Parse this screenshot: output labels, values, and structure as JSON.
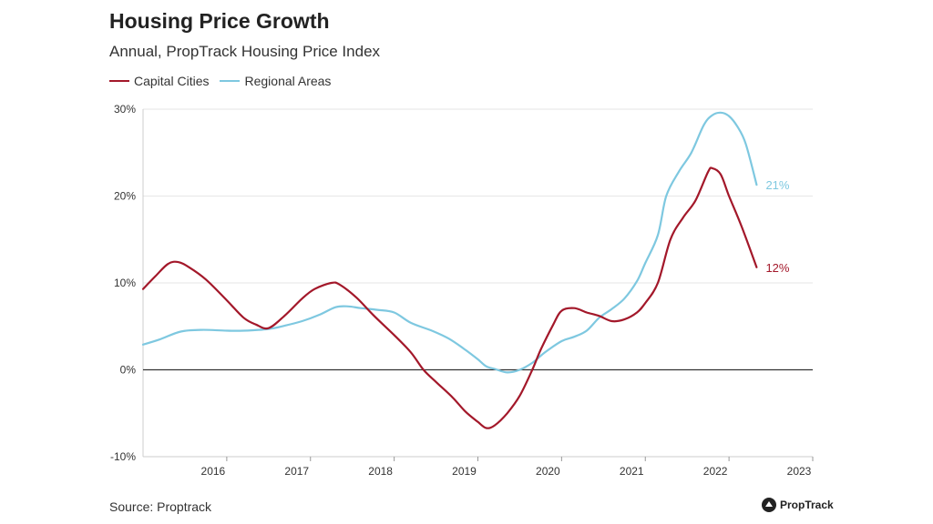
{
  "header": {
    "title": "Housing Price Growth",
    "subtitle": "Annual, PropTrack Housing Price Index"
  },
  "footer": {
    "source": "Source: Proptrack",
    "logo_text": "PropTrack"
  },
  "chart_data": {
    "type": "line",
    "title": "Housing Price Growth",
    "subtitle": "Annual, PropTrack Housing Price Index",
    "xlabel": "",
    "ylabel": "",
    "xlim": [
      2015.0,
      2023.0
    ],
    "ylim": [
      -10,
      30
    ],
    "y_ticks": [
      30,
      20,
      10,
      0,
      -10
    ],
    "y_tick_labels": [
      "30%",
      "20%",
      "10%",
      "0%",
      "-10%"
    ],
    "x_ticks": [
      2016,
      2017,
      2018,
      2019,
      2020,
      2021,
      2022,
      2023
    ],
    "x_tick_labels": [
      "2016",
      "2017",
      "2018",
      "2019",
      "2020",
      "2021",
      "2022",
      "2023"
    ],
    "grid": "horizontal",
    "legend_position": "top-left",
    "colors": {
      "capital": "#a3182a",
      "regional": "#7ec8e0",
      "zero_line": "#333333",
      "grid": "#e6e6e6"
    },
    "series": [
      {
        "name": "Capital Cities",
        "color": "#a3182a",
        "end_label": "12%",
        "points": [
          [
            2015.0,
            9.3
          ],
          [
            2015.15,
            10.8
          ],
          [
            2015.3,
            12.2
          ],
          [
            2015.42,
            12.4
          ],
          [
            2015.55,
            11.8
          ],
          [
            2015.75,
            10.4
          ],
          [
            2016.0,
            8.0
          ],
          [
            2016.2,
            6.0
          ],
          [
            2016.35,
            5.2
          ],
          [
            2016.5,
            4.8
          ],
          [
            2016.7,
            6.3
          ],
          [
            2016.9,
            8.2
          ],
          [
            2017.05,
            9.3
          ],
          [
            2017.25,
            10.0
          ],
          [
            2017.35,
            9.8
          ],
          [
            2017.55,
            8.3
          ],
          [
            2017.75,
            6.3
          ],
          [
            2018.0,
            4.0
          ],
          [
            2018.2,
            2.0
          ],
          [
            2018.35,
            0.0
          ],
          [
            2018.5,
            -1.4
          ],
          [
            2018.7,
            -3.2
          ],
          [
            2018.85,
            -4.8
          ],
          [
            2019.0,
            -6.0
          ],
          [
            2019.1,
            -6.7
          ],
          [
            2019.2,
            -6.4
          ],
          [
            2019.35,
            -5.0
          ],
          [
            2019.5,
            -3.0
          ],
          [
            2019.65,
            0.0
          ],
          [
            2019.75,
            2.3
          ],
          [
            2019.9,
            5.2
          ],
          [
            2020.0,
            6.8
          ],
          [
            2020.15,
            7.1
          ],
          [
            2020.3,
            6.6
          ],
          [
            2020.45,
            6.2
          ],
          [
            2020.6,
            5.6
          ],
          [
            2020.75,
            5.8
          ],
          [
            2020.9,
            6.6
          ],
          [
            2021.0,
            7.7
          ],
          [
            2021.15,
            10.0
          ],
          [
            2021.3,
            15.0
          ],
          [
            2021.45,
            17.5
          ],
          [
            2021.6,
            19.5
          ],
          [
            2021.75,
            22.8
          ],
          [
            2021.8,
            23.2
          ],
          [
            2021.9,
            22.5
          ],
          [
            2022.0,
            20.0
          ],
          [
            2022.15,
            16.5
          ],
          [
            2022.33,
            11.8
          ]
        ]
      },
      {
        "name": "Regional Areas",
        "color": "#7ec8e0",
        "end_label": "21%",
        "points": [
          [
            2015.0,
            2.9
          ],
          [
            2015.2,
            3.5
          ],
          [
            2015.45,
            4.4
          ],
          [
            2015.7,
            4.6
          ],
          [
            2016.0,
            4.5
          ],
          [
            2016.2,
            4.5
          ],
          [
            2016.5,
            4.7
          ],
          [
            2016.7,
            5.1
          ],
          [
            2016.9,
            5.6
          ],
          [
            2017.1,
            6.3
          ],
          [
            2017.3,
            7.2
          ],
          [
            2017.45,
            7.3
          ],
          [
            2017.6,
            7.1
          ],
          [
            2017.8,
            6.9
          ],
          [
            2018.0,
            6.6
          ],
          [
            2018.2,
            5.4
          ],
          [
            2018.45,
            4.5
          ],
          [
            2018.65,
            3.6
          ],
          [
            2018.85,
            2.3
          ],
          [
            2019.0,
            1.2
          ],
          [
            2019.1,
            0.4
          ],
          [
            2019.2,
            0.1
          ],
          [
            2019.35,
            -0.3
          ],
          [
            2019.5,
            0.0
          ],
          [
            2019.65,
            0.8
          ],
          [
            2019.8,
            2.0
          ],
          [
            2020.0,
            3.3
          ],
          [
            2020.15,
            3.8
          ],
          [
            2020.3,
            4.5
          ],
          [
            2020.45,
            6.0
          ],
          [
            2020.6,
            7.0
          ],
          [
            2020.75,
            8.2
          ],
          [
            2020.9,
            10.2
          ],
          [
            2021.0,
            12.3
          ],
          [
            2021.15,
            15.5
          ],
          [
            2021.25,
            20.0
          ],
          [
            2021.4,
            22.8
          ],
          [
            2021.55,
            25.0
          ],
          [
            2021.7,
            28.2
          ],
          [
            2021.8,
            29.3
          ],
          [
            2021.9,
            29.6
          ],
          [
            2022.0,
            29.2
          ],
          [
            2022.1,
            28.0
          ],
          [
            2022.2,
            26.0
          ],
          [
            2022.33,
            21.3
          ]
        ]
      }
    ]
  }
}
